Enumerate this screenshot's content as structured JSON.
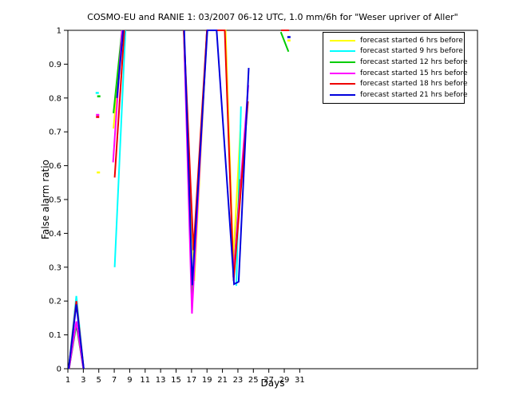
{
  "chart_data": {
    "type": "line",
    "title": "COSMO-EU and RANIE 1: 03/2007 06-12 UTC, 1.0 mm/6h for \"Weser upriver of Aller\"",
    "xlabel": "Days",
    "ylabel": "False alarm ratio",
    "xlim": [
      1,
      54
    ],
    "ylim": [
      0,
      1
    ],
    "xticks": [
      1,
      3,
      5,
      7,
      9,
      11,
      13,
      15,
      17,
      19,
      21,
      23,
      25,
      27,
      29,
      31
    ],
    "yticks": [
      0,
      0.1,
      0.2,
      0.3,
      0.4,
      0.5,
      0.6,
      0.7,
      0.8,
      0.9,
      1
    ],
    "grid": false,
    "legend_position": "top-right",
    "axis_color": "#000000",
    "background_color": "#ffffff",
    "series": [
      {
        "name": "forecast started 6 hrs before",
        "color": "#ffff00",
        "segments": [
          [
            [
              4.95,
              0.58
            ]
          ],
          [
            [
              6.9,
              0.71
            ],
            [
              8.05,
              1.0
            ]
          ],
          [
            [
              16.0,
              1.0
            ],
            [
              17.35,
              0.26
            ],
            [
              19.0,
              1.0
            ],
            [
              21.4,
              1.0
            ],
            [
              22.4,
              0.32
            ],
            [
              23.35,
              0.72
            ]
          ],
          [
            [
              29.6,
              0.97
            ]
          ]
        ]
      },
      {
        "name": "forecast started 9 hrs before",
        "color": "#00ffff",
        "segments": [
          [
            [
              1.1,
              0.0
            ],
            [
              2.1,
              0.215
            ],
            [
              3.05,
              0.0
            ]
          ],
          [
            [
              4.8,
              0.815
            ]
          ],
          [
            [
              7.05,
              0.3
            ],
            [
              8.45,
              1.0
            ]
          ],
          [
            [
              22.8,
              0.245
            ],
            [
              23.4,
              0.775
            ]
          ]
        ]
      },
      {
        "name": "forecast started 12 hrs before",
        "color": "#00cc00",
        "segments": [
          [
            [
              1.15,
              0.0
            ],
            [
              2.1,
              0.13
            ],
            [
              3.0,
              0.0
            ]
          ],
          [
            [
              5.0,
              0.805
            ]
          ],
          [
            [
              6.9,
              0.755
            ],
            [
              8.0,
              1.0
            ]
          ],
          [
            [
              16.0,
              1.0
            ],
            [
              17.1,
              0.21
            ],
            [
              19.0,
              1.0
            ]
          ],
          [
            [
              22.45,
              0.275
            ],
            [
              23.3,
              0.56
            ]
          ],
          [
            [
              28.55,
              0.995
            ],
            [
              29.55,
              0.937
            ]
          ]
        ]
      },
      {
        "name": "forecast started 15 hrs before",
        "color": "#ff00ff",
        "segments": [
          [
            [
              1.15,
              0.0
            ],
            [
              2.1,
              0.14
            ],
            [
              3.0,
              0.0
            ]
          ],
          [
            [
              4.85,
              0.75
            ]
          ],
          [
            [
              6.85,
              0.61
            ],
            [
              8.0,
              1.0
            ]
          ],
          [
            [
              16.0,
              1.0
            ],
            [
              17.05,
              0.163
            ],
            [
              19.0,
              1.0
            ]
          ],
          [
            [
              22.4,
              0.27
            ],
            [
              24.35,
              0.838
            ]
          ]
        ]
      },
      {
        "name": "forecast started 18 hrs before",
        "color": "#ee0000",
        "segments": [
          [
            [
              1.1,
              0.0
            ],
            [
              2.1,
              0.2
            ],
            [
              3.05,
              0.0
            ]
          ],
          [
            [
              4.85,
              0.744
            ]
          ],
          [
            [
              7.05,
              0.565
            ],
            [
              8.3,
              1.0
            ]
          ],
          [
            [
              16.0,
              1.0
            ],
            [
              17.25,
              0.35
            ],
            [
              19.0,
              1.0
            ],
            [
              21.3,
              1.0
            ],
            [
              22.45,
              0.26
            ],
            [
              24.3,
              0.79
            ]
          ],
          [
            [
              28.6,
              1.0
            ],
            [
              29.6,
              1.0
            ]
          ]
        ]
      },
      {
        "name": "forecast started 21 hrs before",
        "color": "#0000dd",
        "segments": [
          [
            [
              1.1,
              0.0
            ],
            [
              2.1,
              0.19
            ],
            [
              3.05,
              0.0
            ]
          ],
          [
            [
              7.35,
              0.8
            ],
            [
              8.15,
              1.0
            ]
          ],
          [
            [
              16.05,
              1.0
            ],
            [
              17.1,
              0.247
            ],
            [
              19.05,
              1.0
            ],
            [
              20.25,
              1.0
            ],
            [
              22.5,
              0.25
            ],
            [
              23.1,
              0.257
            ],
            [
              24.4,
              0.889
            ]
          ],
          [
            [
              29.6,
              0.98
            ]
          ]
        ]
      }
    ]
  }
}
